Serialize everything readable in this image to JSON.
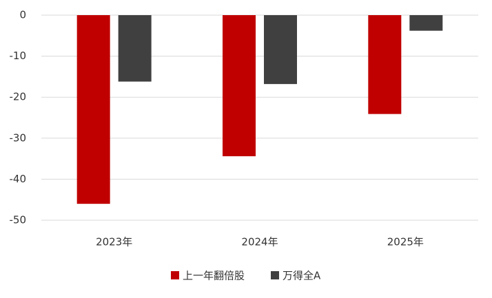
{
  "chart_data": {
    "type": "bar",
    "categories": [
      "2023年",
      "2024年",
      "2025年"
    ],
    "series": [
      {
        "name": "上一年翻倍股",
        "color": "#c00000",
        "values": [
          -46,
          -34.4,
          -24.1
        ]
      },
      {
        "name": "万得全A",
        "color": "#404040",
        "values": [
          -16.2,
          -16.8,
          -3.8
        ]
      }
    ],
    "ylim": [
      -50,
      0
    ],
    "yticks": [
      0,
      -10,
      -20,
      -30,
      -40,
      -50
    ],
    "grid": true,
    "legend": "bottom"
  }
}
